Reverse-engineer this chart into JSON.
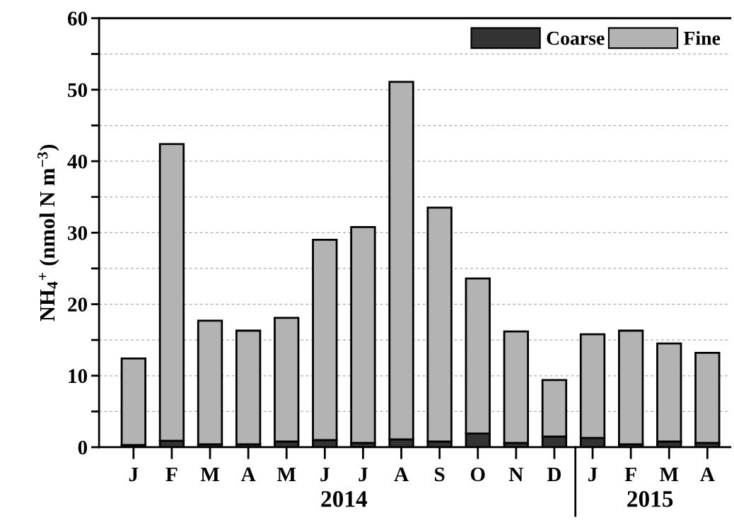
{
  "chart_data": {
    "type": "bar",
    "stacked": true,
    "ylabel": "NH$_{4}$$^{+}$ (nmol N m$^{−3}$)",
    "categories": [
      "J",
      "F",
      "M",
      "A",
      "M",
      "J",
      "J",
      "A",
      "S",
      "O",
      "N",
      "D",
      "J",
      "F",
      "M",
      "A"
    ],
    "series": [
      {
        "name": "Coarse",
        "color": "#333333",
        "values": [
          0.3,
          0.9,
          0.4,
          0.4,
          0.8,
          1.0,
          0.6,
          1.1,
          0.8,
          1.9,
          0.6,
          1.5,
          1.3,
          0.4,
          0.8,
          0.6
        ]
      },
      {
        "name": "Fine",
        "color": "#b3b3b3",
        "values": [
          12.1,
          41.5,
          17.3,
          15.9,
          17.3,
          28.0,
          30.2,
          50.0,
          32.7,
          21.7,
          15.6,
          7.9,
          14.5,
          15.9,
          13.7,
          12.6
        ]
      }
    ],
    "ylim": [
      0,
      60
    ],
    "yticks": [
      0,
      {
        "value": 5,
        "label": null
      },
      10,
      {
        "value": 15,
        "label": null
      },
      20,
      {
        "value": 25,
        "label": null
      },
      30,
      {
        "value": 35,
        "label": null
      },
      40,
      {
        "value": 45,
        "label": null
      },
      50,
      {
        "value": 55,
        "label": null
      },
      60
    ],
    "grid": "y",
    "legend": "top right",
    "annotations": [
      "2014",
      "2015"
    ]
  }
}
